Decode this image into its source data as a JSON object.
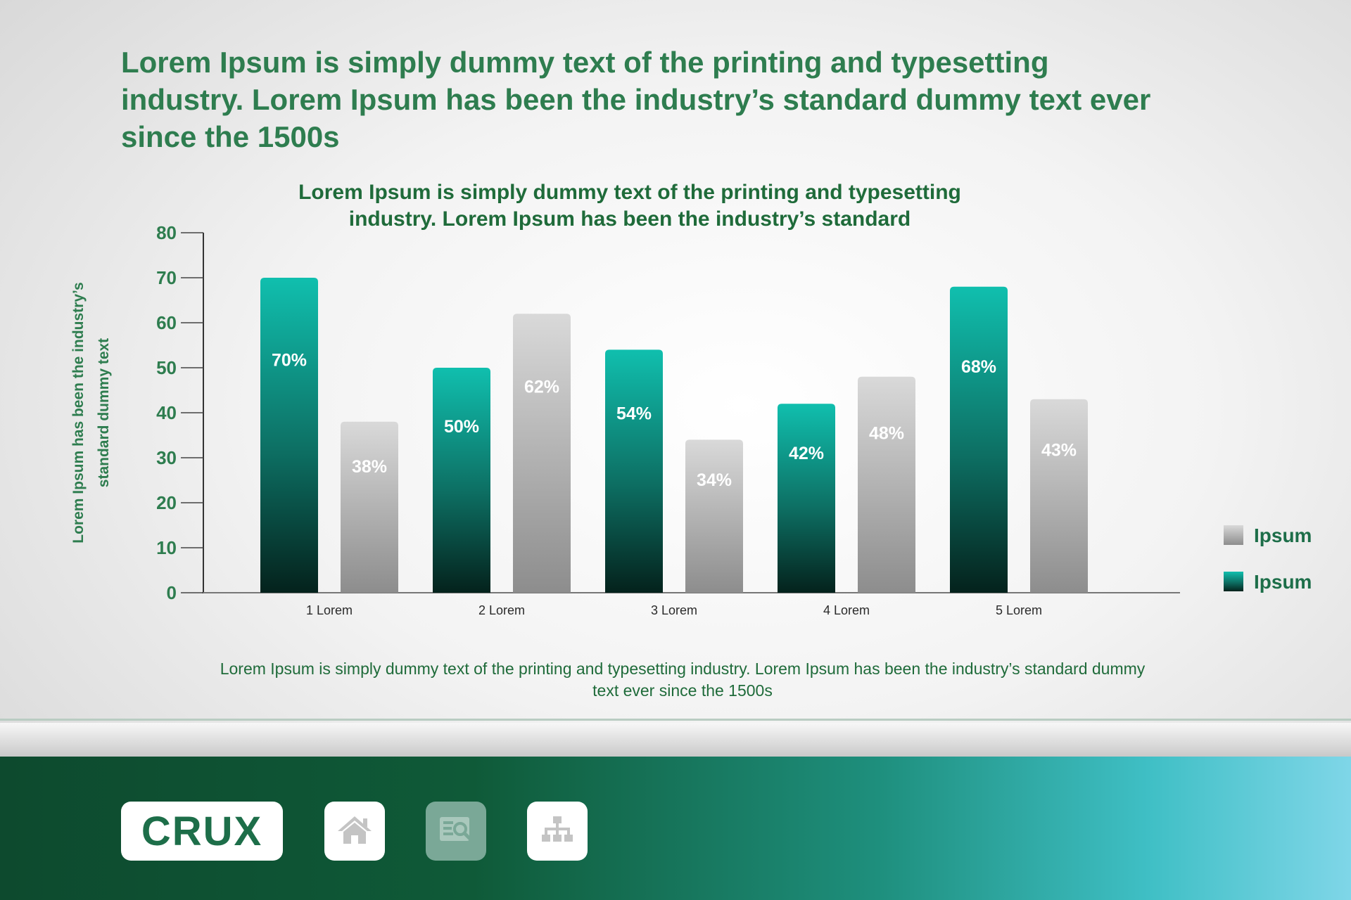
{
  "headline": "Lorem Ipsum is simply dummy text of the printing and typesetting industry. Lorem Ipsum has been the industry’s standard dummy text ever since the 1500s",
  "chart_data": {
    "type": "bar",
    "title": "Lorem Ipsum is simply dummy text of the printing and typesetting industry. Lorem Ipsum has been the industry’s standard",
    "title_lines": [
      "Lorem Ipsum is simply dummy text of the printing and typesetting",
      "industry. Lorem Ipsum has been the industry’s standard"
    ],
    "ylabel": "Lorem Ipsum has been the industry’s standard dummy text",
    "ylabel_lines": [
      "Lorem Ipsum has been the industry’s",
      "standard dummy text"
    ],
    "xlabel": "",
    "ylim": [
      0,
      80
    ],
    "yticks": [
      0,
      10,
      20,
      30,
      40,
      50,
      60,
      70,
      80
    ],
    "categories": [
      "1 Lorem",
      "2 Lorem",
      "3 Lorem",
      "4 Lorem",
      "5 Lorem"
    ],
    "series": [
      {
        "name": "Ipsum",
        "color": "#10bfae",
        "values": [
          70,
          50,
          54,
          42,
          68
        ],
        "labels": [
          "70%",
          "50%",
          "54%",
          "42%",
          "68%"
        ]
      },
      {
        "name": "Ipsum",
        "color": "#c9c9c9",
        "values": [
          38,
          62,
          34,
          48,
          43
        ],
        "labels": [
          "38%",
          "62%",
          "34%",
          "48%",
          "43%"
        ]
      }
    ],
    "legend": {
      "position": "right",
      "items": [
        {
          "label": "Ipsum",
          "color": "#c9c9c9"
        },
        {
          "label": "Ipsum",
          "color": "#10bfae"
        }
      ]
    },
    "grid": false
  },
  "caption": "Lorem Ipsum is simply dummy text of the printing and typesetting industry. Lorem Ipsum has been the industry’s standard dummy text ever since the 1500s",
  "footer": {
    "logo_text": "CRUX",
    "nav": [
      {
        "icon": "home-icon",
        "active": false
      },
      {
        "icon": "search-document-icon",
        "active": true
      },
      {
        "icon": "sitemap-icon",
        "active": false
      }
    ]
  },
  "colors": {
    "brand_green": "#2e7d4f",
    "teal_top": "#10bfae",
    "teal_bottom": "#04221c",
    "gray_top": "#d9d9d9",
    "gray_bottom": "#8d8d8d"
  }
}
